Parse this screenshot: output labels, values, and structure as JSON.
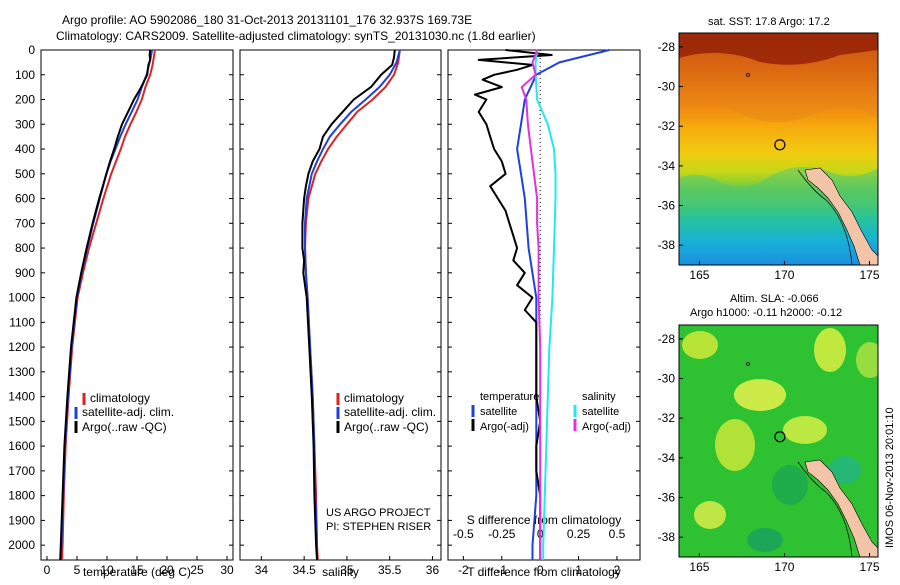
{
  "header": {
    "title_line1": "Argo profile: AO 5902086_180 31-Oct-2013 20131101_176 32.937S 169.73E",
    "title_line2": "Climatology: CARS2009. Satellite-adjusted climatology: synTS_20131030.nc (1.8d earlier)"
  },
  "colors": {
    "climatology": "#dd2222",
    "satellite": "#1f3fe0",
    "argo": "#000000",
    "sal_satellite": "#22e8f0",
    "sal_argo": "#e030e0",
    "land": "#f3c4a8"
  },
  "chart_data": [
    {
      "id": "temperature",
      "type": "line",
      "xlabel": "temperature (deg C)",
      "ylabel": "",
      "xlim": [
        -1,
        31
      ],
      "ylim": [
        2060,
        0
      ],
      "xticks": [
        0,
        5,
        10,
        15,
        20,
        25,
        30
      ],
      "xtick_labels": [
        "0",
        "5",
        "10",
        "15",
        "20",
        "25",
        "30"
      ],
      "yticks": [
        0,
        100,
        200,
        300,
        400,
        500,
        600,
        700,
        800,
        900,
        1000,
        1100,
        1200,
        1300,
        1400,
        1500,
        1600,
        1700,
        1800,
        1900,
        2000
      ],
      "ytick_labels": [
        "0",
        "100",
        "200",
        "300",
        "400",
        "500",
        "600",
        "700",
        "800",
        "900",
        "1000",
        "1100",
        "1200",
        "1300",
        "1400",
        "1500",
        "1600",
        "1700",
        "1800",
        "1900",
        "2000"
      ],
      "legend": [
        "climatology",
        "satellite-adj. clim.",
        "Argo(..raw -QC)"
      ],
      "series": [
        {
          "name": "climatology",
          "color_key": "climatology",
          "depth": [
            0,
            30,
            60,
            100,
            150,
            200,
            250,
            300,
            350,
            400,
            450,
            500,
            600,
            700,
            800,
            900,
            1000,
            1200,
            1400,
            1600,
            1800,
            2000,
            2060
          ],
          "values": [
            18.0,
            17.8,
            17.6,
            17.2,
            16.4,
            15.8,
            14.9,
            13.9,
            13.0,
            12.3,
            11.5,
            10.7,
            9.4,
            8.2,
            7.0,
            6.0,
            5.1,
            4.2,
            3.6,
            3.1,
            2.8,
            2.6,
            2.5
          ]
        },
        {
          "name": "satellite-adj. clim.",
          "color_key": "satellite",
          "depth": [
            0,
            30,
            60,
            100,
            150,
            200,
            250,
            300,
            350,
            400,
            450,
            500,
            600,
            700,
            800,
            900,
            1000,
            1200,
            1400,
            1600,
            1800,
            2000,
            2060
          ],
          "values": [
            17.5,
            17.3,
            17.0,
            16.6,
            15.8,
            15.1,
            14.1,
            13.1,
            12.2,
            11.4,
            10.6,
            9.9,
            8.8,
            7.7,
            6.7,
            5.8,
            5.0,
            4.1,
            3.5,
            3.0,
            2.7,
            2.4,
            2.3
          ]
        },
        {
          "name": "Argo(..raw -QC)",
          "color_key": "argo",
          "depth": [
            0,
            20,
            40,
            60,
            80,
            100,
            150,
            200,
            250,
            300,
            350,
            400,
            450,
            500,
            600,
            700,
            800,
            900,
            1000,
            1200,
            1400,
            1600,
            1800,
            2000,
            2060
          ],
          "values": [
            17.2,
            17.1,
            17.2,
            16.9,
            16.8,
            16.7,
            15.7,
            14.5,
            13.5,
            12.5,
            11.8,
            11.2,
            10.5,
            9.9,
            8.7,
            7.6,
            6.6,
            5.7,
            4.9,
            4.0,
            3.4,
            2.9,
            2.6,
            2.3,
            2.2
          ]
        }
      ]
    },
    {
      "id": "salinity",
      "type": "line",
      "xlabel": "salinity",
      "ylabel": "",
      "xlim": [
        33.75,
        36.1
      ],
      "ylim": [
        2060,
        0
      ],
      "xticks": [
        34,
        34.5,
        35,
        35.5,
        36
      ],
      "xtick_labels": [
        "34",
        "34.5",
        "35",
        "35.5",
        "36"
      ],
      "legend": [
        "climatology",
        "satellite-adj. clim.",
        "Argo(..raw -QC)"
      ],
      "annotations": [
        "US ARGO PROJECT",
        "PI: STEPHEN RISER"
      ],
      "series": [
        {
          "name": "climatology",
          "color_key": "climatology",
          "depth": [
            0,
            50,
            100,
            150,
            200,
            250,
            300,
            350,
            400,
            450,
            500,
            600,
            700,
            800,
            900,
            1000,
            1200,
            1400,
            1600,
            1800,
            2000,
            2060
          ],
          "values": [
            35.62,
            35.6,
            35.55,
            35.45,
            35.3,
            35.12,
            35.0,
            34.88,
            34.78,
            34.7,
            34.63,
            34.55,
            34.52,
            34.51,
            34.52,
            34.54,
            34.57,
            34.6,
            34.62,
            34.64,
            34.65,
            34.66
          ]
        },
        {
          "name": "satellite-adj. clim.",
          "color_key": "satellite",
          "depth": [
            0,
            50,
            100,
            150,
            200,
            250,
            300,
            350,
            400,
            450,
            500,
            600,
            700,
            800,
            900,
            1000,
            1200,
            1400,
            1600,
            1800,
            2000,
            2060
          ],
          "values": [
            35.62,
            35.58,
            35.5,
            35.38,
            35.22,
            35.05,
            34.92,
            34.8,
            34.72,
            34.65,
            34.59,
            34.53,
            34.51,
            34.51,
            34.52,
            34.54,
            34.57,
            34.6,
            34.62,
            34.63,
            34.65,
            34.65
          ]
        },
        {
          "name": "Argo(..raw -QC)",
          "color_key": "argo",
          "depth": [
            0,
            30,
            60,
            100,
            150,
            200,
            250,
            300,
            350,
            400,
            450,
            500,
            550,
            600,
            700,
            800,
            850,
            900,
            950,
            1000,
            1200,
            1400,
            1600,
            1800,
            2000,
            2060
          ],
          "values": [
            35.56,
            35.55,
            35.53,
            35.4,
            35.28,
            35.08,
            34.95,
            34.82,
            34.72,
            34.68,
            34.6,
            34.55,
            34.52,
            34.5,
            34.48,
            34.48,
            34.5,
            34.49,
            34.51,
            34.53,
            34.56,
            34.59,
            34.61,
            34.62,
            34.64,
            34.65
          ]
        }
      ]
    },
    {
      "id": "differences",
      "type": "line",
      "xlabel": "T difference from climatology",
      "xlabel_top": "S difference from climatology",
      "xlim": [
        -2.4,
        2.6
      ],
      "ylim": [
        2060,
        0
      ],
      "xticks": [
        -2,
        -1,
        0,
        1,
        2
      ],
      "xtick_labels": [
        "-2",
        "-1",
        "0",
        "1",
        "2"
      ],
      "sticks": [
        -0.5,
        -0.25,
        0,
        0.25,
        0.5
      ],
      "stick_labels": [
        "-0.5",
        "-0.25",
        "0",
        "0.25",
        "0.5"
      ],
      "legend_temperature_title": "temperature",
      "legend_salinity_title": "salinity",
      "legend_temperature": [
        "satellite",
        "Argo(-adj)"
      ],
      "legend_salinity": [
        "satellite",
        "Argo(-adj)"
      ],
      "series": [
        {
          "name": "satellite",
          "color_key": "satellite",
          "depth": [
            0,
            50,
            100,
            200,
            300,
            400,
            500,
            600,
            800,
            1000,
            1200,
            1400,
            1600,
            1800,
            2000,
            2060
          ],
          "values": [
            1.8,
            0.5,
            -0.1,
            -0.4,
            -0.5,
            -0.6,
            -0.5,
            -0.4,
            -0.3,
            -0.1,
            -0.1,
            -0.1,
            -0.1,
            -0.1,
            -0.2,
            -0.2
          ]
        },
        {
          "name": "Argo(-adj)",
          "color_key": "argo",
          "depth": [
            0,
            20,
            40,
            60,
            80,
            100,
            120,
            150,
            180,
            200,
            250,
            300,
            350,
            400,
            450,
            500,
            550,
            600,
            650,
            700,
            750,
            800,
            850,
            900,
            950,
            1000,
            1050,
            1100,
            1200,
            1300,
            1400,
            1500,
            1600,
            1700,
            1800,
            1900,
            2000,
            2060
          ],
          "values": [
            -0.9,
            0.3,
            -1.6,
            -0.2,
            -0.6,
            -1.2,
            -1.5,
            -1.0,
            -1.7,
            -1.4,
            -1.6,
            -1.4,
            -1.3,
            -1.2,
            -1.0,
            -0.9,
            -1.3,
            -1.1,
            -0.9,
            -0.8,
            -0.7,
            -0.6,
            -0.7,
            -0.4,
            -0.6,
            -0.2,
            -0.4,
            -0.1,
            -0.1,
            -0.1,
            -0.1,
            0.0,
            -0.1,
            -0.1,
            0.0,
            0.0,
            0.0,
            0.0
          ]
        },
        {
          "name": "salinity satellite",
          "color_key": "sal_satellite",
          "depth": [
            0,
            50,
            100,
            200,
            300,
            400,
            500,
            600,
            800,
            1000,
            1200,
            1400,
            1600,
            1800,
            2000,
            2060
          ],
          "svalues": [
            -0.02,
            -0.03,
            -0.03,
            -0.02,
            0.05,
            0.09,
            0.1,
            0.1,
            0.09,
            0.08,
            0.06,
            0.05,
            0.04,
            0.03,
            0.02,
            0.02
          ]
        },
        {
          "name": "salinity Argo(-adj)",
          "color_key": "sal_argo",
          "depth": [
            0,
            50,
            100,
            150,
            200,
            300,
            400,
            500,
            600,
            700,
            800,
            900,
            1000,
            1200,
            1400,
            1600,
            1800,
            2000,
            2060
          ],
          "svalues": [
            -0.02,
            -0.05,
            -0.03,
            -0.12,
            -0.09,
            -0.08,
            -0.06,
            -0.04,
            -0.02,
            -0.02,
            -0.01,
            -0.01,
            -0.01,
            0.0,
            0.0,
            0.0,
            0.0,
            0.0,
            0.0
          ]
        }
      ]
    },
    {
      "id": "sst_map",
      "type": "heatmap",
      "title": "sat. SST: 17.8 Argo: 17.2",
      "xticks": [
        165,
        170,
        175
      ],
      "xtick_labels": [
        "165",
        "170",
        "175"
      ],
      "yticks": [
        -28,
        -30,
        -32,
        -34,
        -36,
        -38
      ],
      "ytick_labels": [
        "-28",
        "-30",
        "-32",
        "-34",
        "-36",
        "-38"
      ],
      "xlim": [
        163.8,
        175.5
      ],
      "ylim": [
        -39,
        -27.3
      ],
      "float_position": [
        169.73,
        -32.937
      ]
    },
    {
      "id": "sla_map",
      "type": "heatmap",
      "title_line1": "Altim. SLA: -0.066",
      "title_line2": "Argo h1000: -0.11 h2000: -0.12",
      "xticks": [
        165,
        170,
        175
      ],
      "xtick_labels": [
        "165",
        "170",
        "175"
      ],
      "yticks": [
        -28,
        -30,
        -32,
        -34,
        -36,
        -38
      ],
      "ytick_labels": [
        "-28",
        "-30",
        "-32",
        "-34",
        "-36",
        "-38"
      ],
      "xlim": [
        163.8,
        175.5
      ],
      "ylim": [
        -39,
        -27.3
      ],
      "float_position": [
        169.73,
        -32.937
      ]
    }
  ],
  "footer": {
    "stamp": "IMOS 06-Nov-2013 20:01:10"
  }
}
